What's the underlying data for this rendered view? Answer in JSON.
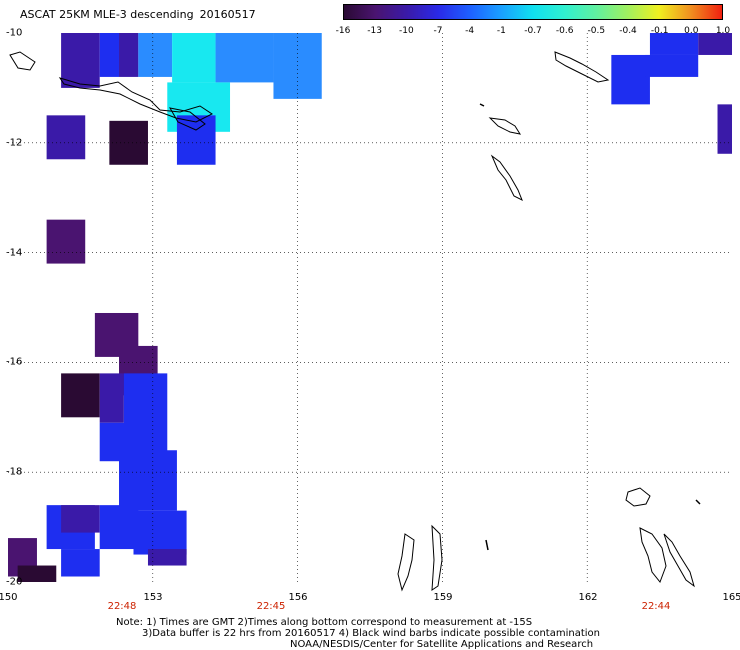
{
  "title": {
    "text": "ASCAT 25KM MLE-3 descending",
    "date": "20160517"
  },
  "colorbar": {
    "ticks": [
      "-16",
      "-13",
      "-10",
      "-7",
      "-4",
      "-1",
      "-0.7",
      "-0.6",
      "-0.5",
      "-0.4",
      "-0.1",
      "0.0",
      "1.0"
    ],
    "colors": [
      "#2a0a33",
      "#4a1470",
      "#3a1aa8",
      "#2a2ae8",
      "#1e60ff",
      "#1aa0ff",
      "#10e0f0",
      "#30f0d0",
      "#60f0a0",
      "#a0f060",
      "#f0f020",
      "#f09020",
      "#f02010"
    ]
  },
  "axes": {
    "lon_ticks": [
      "150",
      "153",
      "156",
      "159",
      "162",
      "165"
    ],
    "lat_ticks": [
      "-10",
      "-12",
      "-14",
      "-16",
      "-18",
      "-20"
    ],
    "time_labels": [
      "22:48",
      "22:45",
      "22:44"
    ],
    "lon_range": [
      150,
      165
    ],
    "lat_range": [
      -20,
      -10
    ]
  },
  "chart_data": {
    "type": "heatmap",
    "title": "ASCAT 25KM MLE-3 descending",
    "note": "Cells colored by MLE value; values estimated from colorbar.",
    "cells": [
      {
        "lon": [
          151.1,
          151.9
        ],
        "lat": [
          -10.0,
          -11.0
        ],
        "value": -10
      },
      {
        "lon": [
          151.9,
          152.3
        ],
        "lat": [
          -10.0,
          -10.8
        ],
        "value": -7
      },
      {
        "lon": [
          152.3,
          152.7
        ],
        "lat": [
          -10.0,
          -10.8
        ],
        "value": -10
      },
      {
        "lon": [
          152.7,
          153.4
        ],
        "lat": [
          -10.0,
          -10.8
        ],
        "value": -4
      },
      {
        "lon": [
          153.4,
          154.3
        ],
        "lat": [
          -10.0,
          -10.9
        ],
        "value": -1
      },
      {
        "lon": [
          154.3,
          155.5
        ],
        "lat": [
          -10.0,
          -10.9
        ],
        "value": -4
      },
      {
        "lon": [
          155.5,
          156.5
        ],
        "lat": [
          -10.0,
          -11.2
        ],
        "value": -4
      },
      {
        "lon": [
          153.3,
          154.6
        ],
        "lat": [
          -10.9,
          -11.8
        ],
        "value": -1
      },
      {
        "lon": [
          153.5,
          154.3
        ],
        "lat": [
          -11.5,
          -12.4
        ],
        "value": -7
      },
      {
        "lon": [
          150.8,
          151.6
        ],
        "lat": [
          -11.5,
          -12.3
        ],
        "value": -10
      },
      {
        "lon": [
          152.1,
          152.9
        ],
        "lat": [
          -11.6,
          -12.4
        ],
        "value": -16
      },
      {
        "lon": [
          150.8,
          151.6
        ],
        "lat": [
          -13.4,
          -14.2
        ],
        "value": -13
      },
      {
        "lon": [
          151.8,
          152.7
        ],
        "lat": [
          -15.1,
          -15.9
        ],
        "value": -13
      },
      {
        "lon": [
          152.3,
          153.1
        ],
        "lat": [
          -15.7,
          -16.6
        ],
        "value": -13
      },
      {
        "lon": [
          151.1,
          151.9
        ],
        "lat": [
          -16.2,
          -17.0
        ],
        "value": -16
      },
      {
        "lon": [
          151.9,
          152.4
        ],
        "lat": [
          -16.2,
          -17.1
        ],
        "value": -10
      },
      {
        "lon": [
          152.4,
          153.3
        ],
        "lat": [
          -16.2,
          -17.9
        ],
        "value": -7
      },
      {
        "lon": [
          151.9,
          152.5
        ],
        "lat": [
          -17.1,
          -17.8
        ],
        "value": -7
      },
      {
        "lon": [
          152.3,
          153.5
        ],
        "lat": [
          -17.6,
          -18.7
        ],
        "value": -7
      },
      {
        "lon": [
          150.8,
          151.8
        ],
        "lat": [
          -18.6,
          -19.4
        ],
        "value": -7
      },
      {
        "lon": [
          151.1,
          151.9
        ],
        "lat": [
          -18.6,
          -19.1
        ],
        "value": -10
      },
      {
        "lon": [
          151.9,
          152.7
        ],
        "lat": [
          -18.6,
          -19.4
        ],
        "value": -7
      },
      {
        "lon": [
          152.6,
          153.7
        ],
        "lat": [
          -18.7,
          -19.5
        ],
        "value": -7
      },
      {
        "lon": [
          152.9,
          153.7
        ],
        "lat": [
          -19.4,
          -19.7
        ],
        "value": -10
      },
      {
        "lon": [
          151.1,
          151.9
        ],
        "lat": [
          -19.4,
          -19.9
        ],
        "value": -7
      },
      {
        "lon": [
          150.0,
          150.6
        ],
        "lat": [
          -19.2,
          -19.9
        ],
        "value": -13
      },
      {
        "lon": [
          150.2,
          151.0
        ],
        "lat": [
          -19.7,
          -20.0
        ],
        "value": -16
      },
      {
        "lon": [
          163.3,
          164.3
        ],
        "lat": [
          -10.0,
          -10.4
        ],
        "value": -7
      },
      {
        "lon": [
          164.3,
          165.0
        ],
        "lat": [
          -10.0,
          -10.4
        ],
        "value": -10
      },
      {
        "lon": [
          162.5,
          163.3
        ],
        "lat": [
          -10.4,
          -11.3
        ],
        "value": -7
      },
      {
        "lon": [
          163.2,
          164.3
        ],
        "lat": [
          -10.4,
          -10.8
        ],
        "value": -7
      },
      {
        "lon": [
          164.7,
          165.0
        ],
        "lat": [
          -11.3,
          -12.2
        ],
        "value": -10
      }
    ]
  },
  "footer": {
    "line1": "Note: 1) Times are GMT 2)Times along bottom correspond to measurement at -15S",
    "line2": "3)Data buffer is 22 hrs from 20160517 4) Black wind barbs indicate possible contamination",
    "line3": "NOAA/NESDIS/Center for Satellite Applications and Research"
  }
}
